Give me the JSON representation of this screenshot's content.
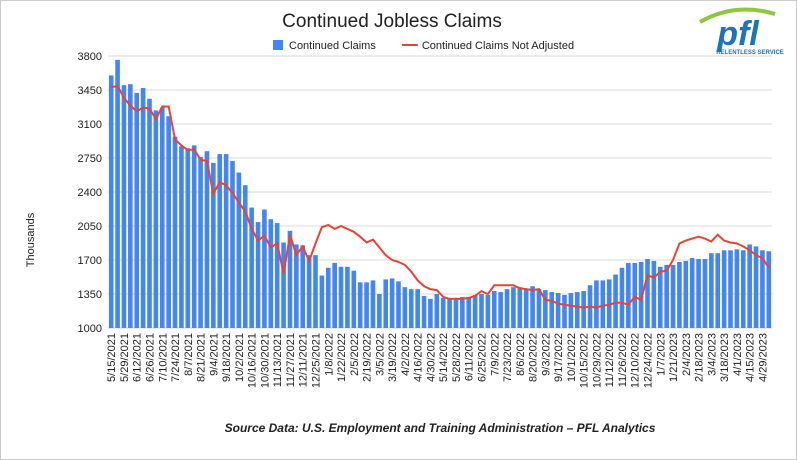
{
  "chart_data": {
    "type": "bar",
    "title": "Continued Jobless Claims",
    "y_label": "Thousands",
    "source": "Source Data: U.S. Employment and Training Administration – PFL Analytics",
    "logo": {
      "text": "pfl",
      "tagline": "RELENTLESS SERVICE"
    },
    "ylim": [
      1000,
      3800
    ],
    "yticks": [
      1000,
      1350,
      1700,
      2050,
      2400,
      2750,
      3100,
      3450,
      3800
    ],
    "grid": true,
    "legend": "top",
    "categories": [
      "5/15/2021",
      null,
      "5/29/2021",
      null,
      "6/12/2021",
      null,
      "6/26/2021",
      null,
      "7/10/2021",
      null,
      "7/24/2021",
      null,
      "8/7/2021",
      null,
      "8/21/2021",
      null,
      "9/4/2021",
      null,
      "9/18/2021",
      null,
      "10/2/2021",
      null,
      "10/16/2021",
      null,
      "10/30/2021",
      null,
      "11/13/2021",
      null,
      "11/27/2021",
      null,
      "12/11/2021",
      null,
      "12/25/2021",
      null,
      "1/8/2022",
      null,
      "1/22/2022",
      null,
      "2/5/2022",
      null,
      "2/19/2022",
      null,
      "3/5/2022",
      null,
      "3/19/2022",
      null,
      "4/2/2022",
      null,
      "4/16/2022",
      null,
      "4/30/2022",
      null,
      "5/14/2022",
      null,
      "5/28/2022",
      null,
      "6/11/2022",
      null,
      "6/25/2022",
      null,
      "7/9/2022",
      null,
      "7/23/2022",
      null,
      "8/6/2022",
      null,
      "8/20/2022",
      null,
      "9/3/2022",
      null,
      "9/17/2022",
      null,
      "10/1/2022",
      null,
      "10/15/2022",
      null,
      "10/29/2022",
      null,
      "11/12/2022",
      null,
      "11/26/2022",
      null,
      "12/10/2022",
      null,
      "12/24/2022",
      null,
      "1/7/2023",
      null,
      "1/21/2023",
      null,
      "2/4/2023",
      null,
      "2/18/2023",
      null,
      "3/4/2023",
      null,
      "3/18/2023",
      null,
      "4/1/2023",
      null,
      "4/15/2023",
      null,
      "4/29/2023",
      null
    ],
    "series": [
      {
        "name": "Continued Claims",
        "type": "bar",
        "color": "#4285f4",
        "values": [
          3600,
          3760,
          3500,
          3510,
          3420,
          3470,
          3360,
          3240,
          3270,
          3180,
          2970,
          2870,
          2850,
          2880,
          2760,
          2820,
          2700,
          2790,
          2790,
          2720,
          2600,
          2470,
          2240,
          2090,
          2220,
          2120,
          2080,
          1880,
          2000,
          1860,
          1850,
          1750,
          1750,
          1540,
          1620,
          1670,
          1630,
          1630,
          1590,
          1470,
          1470,
          1490,
          1350,
          1500,
          1510,
          1480,
          1420,
          1400,
          1400,
          1330,
          1300,
          1350,
          1310,
          1300,
          1310,
          1320,
          1320,
          1340,
          1350,
          1340,
          1380,
          1370,
          1400,
          1420,
          1420,
          1400,
          1430,
          1400,
          1390,
          1370,
          1360,
          1340,
          1360,
          1370,
          1380,
          1440,
          1490,
          1490,
          1500,
          1550,
          1620,
          1670,
          1670,
          1680,
          1710,
          1690,
          1630,
          1650,
          1650,
          1680,
          1690,
          1720,
          1710,
          1710,
          1770,
          1770,
          1800,
          1800,
          1810,
          1800,
          1860,
          1840,
          1800,
          1790
        ]
      },
      {
        "name": "Continued Claims Not Adjusted",
        "type": "line",
        "color": "#ea4335",
        "values": [
          3480,
          3490,
          3370,
          3290,
          3230,
          3270,
          3260,
          3150,
          3280,
          3280,
          2940,
          2880,
          2830,
          2840,
          2730,
          2720,
          2380,
          2500,
          2470,
          2390,
          2290,
          2200,
          2020,
          1900,
          1950,
          1830,
          1870,
          1560,
          1960,
          1750,
          1840,
          1690,
          1870,
          2040,
          2060,
          2020,
          2050,
          2020,
          1990,
          1940,
          1880,
          1910,
          1830,
          1750,
          1700,
          1680,
          1650,
          1580,
          1490,
          1430,
          1400,
          1390,
          1320,
          1300,
          1300,
          1300,
          1310,
          1330,
          1380,
          1350,
          1440,
          1440,
          1440,
          1440,
          1410,
          1400,
          1390,
          1400,
          1290,
          1280,
          1250,
          1240,
          1230,
          1220,
          1210,
          1220,
          1210,
          1230,
          1240,
          1260,
          1260,
          1240,
          1320,
          1290,
          1540,
          1520,
          1580,
          1590,
          1700,
          1870,
          1900,
          1920,
          1940,
          1920,
          1890,
          1960,
          1900,
          1880,
          1870,
          1840,
          1800,
          1750,
          1720,
          1620
        ]
      }
    ]
  }
}
